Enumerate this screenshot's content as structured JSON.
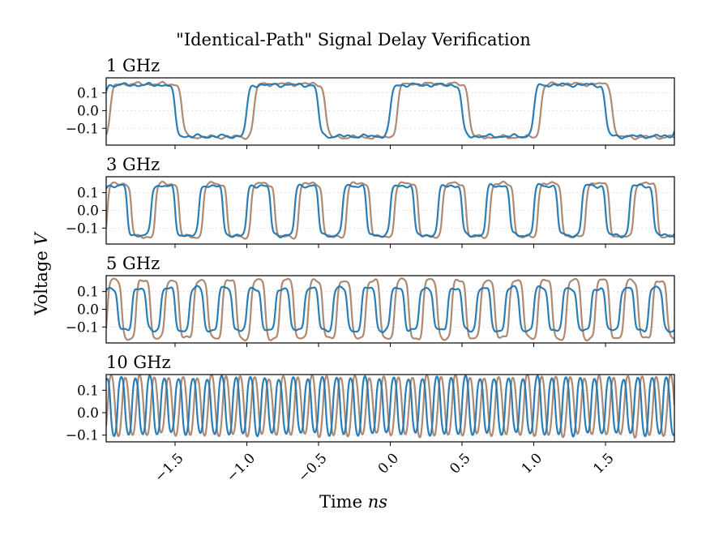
{
  "title": "\"Identical-Path\" Signal Delay Verification",
  "ylabel": {
    "main": "Voltage",
    "unit": "V"
  },
  "xlabel": {
    "main": "Time",
    "unit": "ns"
  },
  "colors": {
    "signal_a": "#1f77b4",
    "signal_b": "#a9846b",
    "grid": "#dcdcdc"
  },
  "chart_data": [
    {
      "type": "line",
      "title": "1 GHz",
      "freq_ghz": 1,
      "ylim": [
        -0.195,
        0.185
      ],
      "yticks": [
        "0.1",
        "0.0",
        "−0.1"
      ],
      "ytick_values": [
        0.1,
        0.0,
        -0.1
      ],
      "amplitude": {
        "signal_a": 0.145,
        "signal_b": 0.15
      },
      "delay_ns": 0.05,
      "sharpness": 8
    },
    {
      "type": "line",
      "title": "3 GHz",
      "freq_ghz": 3,
      "ylim": [
        -0.19,
        0.19
      ],
      "yticks": [
        "0.1",
        "0.0",
        "−0.1"
      ],
      "ytick_values": [
        0.1,
        0.0,
        -0.1
      ],
      "amplitude": {
        "signal_a": 0.14,
        "signal_b": 0.15
      },
      "delay_ns": 0.03,
      "sharpness": 4
    },
    {
      "type": "line",
      "title": "5 GHz",
      "freq_ghz": 5,
      "ylim": [
        -0.19,
        0.19
      ],
      "yticks": [
        "0.1",
        "0.0",
        "−0.1"
      ],
      "ytick_values": [
        0.1,
        0.0,
        -0.1
      ],
      "amplitude": {
        "signal_a": 0.12,
        "signal_b": 0.165
      },
      "delay_ns": 0.03,
      "sharpness": 2.5
    },
    {
      "type": "line",
      "title": "10 GHz",
      "freq_ghz": 10,
      "ylim": [
        -0.13,
        0.17
      ],
      "yticks": [
        "0.1",
        "0.0",
        "−0.1"
      ],
      "ytick_values": [
        0.1,
        0.0,
        -0.1
      ],
      "amplitude": {
        "signal_a": 0.125,
        "signal_b": 0.13
      },
      "offset": 0.03,
      "delay_ns": 0.03,
      "sharpness": 1
    }
  ],
  "xaxis": {
    "xlim": [
      -1.98,
      1.98
    ],
    "ticks": [
      -1.5,
      -1.0,
      -0.5,
      0.0,
      0.5,
      1.0,
      1.5
    ],
    "tick_labels": [
      "−1.5",
      "−1.0",
      "−0.5",
      "0.0",
      "0.5",
      "1.0",
      "1.5"
    ]
  }
}
